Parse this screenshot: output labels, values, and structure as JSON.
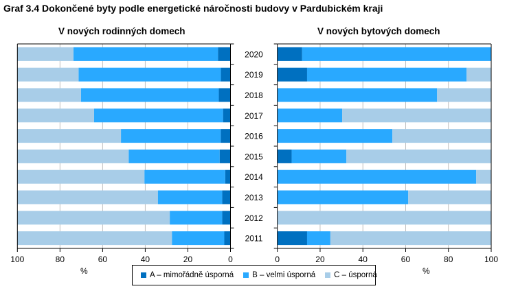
{
  "chart_data": [
    {
      "type": "bar",
      "orientation": "horizontal-stacked",
      "direction": "reversed",
      "title": "V nových rodinných domech",
      "xlabel": "%",
      "xlim": [
        0,
        100
      ],
      "xticks": [
        "100",
        "80",
        "60",
        "40",
        "20",
        "0"
      ],
      "categories": [
        "2020",
        "2019",
        "2018",
        "2017",
        "2016",
        "2015",
        "2014",
        "2013",
        "2012",
        "2011"
      ],
      "grid": true,
      "series": [
        {
          "name": "A – mimořádně úsporná",
          "values": [
            5.9,
            4.5,
            5.5,
            3.5,
            4.6,
            5.1,
            2.5,
            3.9,
            3.9,
            2.9
          ]
        },
        {
          "name": "B – velmi úsporná",
          "values": [
            67.8,
            66.8,
            64.7,
            60.5,
            46.8,
            42.7,
            37.9,
            30.2,
            24.6,
            24.6
          ]
        },
        {
          "name": "C – úsporná",
          "values": [
            26.3,
            28.7,
            29.8,
            36.0,
            48.6,
            52.2,
            59.6,
            65.9,
            71.5,
            72.5
          ]
        }
      ]
    },
    {
      "type": "bar",
      "orientation": "horizontal-stacked",
      "direction": "normal",
      "title": "V nových bytových domech",
      "xlabel": "%",
      "xlim": [
        0,
        100
      ],
      "xticks": [
        "0",
        "20",
        "40",
        "60",
        "80",
        "100"
      ],
      "categories": [
        "2020",
        "2019",
        "2018",
        "2017",
        "2016",
        "2015",
        "2014",
        "2013",
        "2012",
        "2011"
      ],
      "grid": true,
      "series": [
        {
          "name": "A – mimořádně úsporná",
          "values": [
            11.6,
            13.9,
            0,
            0,
            0,
            6.7,
            0,
            0,
            0,
            13.9
          ]
        },
        {
          "name": "B – velmi úsporná",
          "values": [
            88.4,
            74.6,
            74.7,
            30.3,
            53.8,
            25.6,
            93.0,
            61.2,
            0,
            10.9
          ]
        },
        {
          "name": "C – úsporná",
          "values": [
            0,
            11.5,
            25.3,
            69.7,
            46.2,
            67.7,
            7.0,
            38.8,
            100,
            75.2
          ]
        }
      ]
    }
  ],
  "page": {
    "title": "Graf 3.4 Dokončené byty podle energetické náročnosti budovy v Pardubickém kraji",
    "left_subtitle": "V nových rodinných domech",
    "right_subtitle": "V nových bytových domech",
    "left_xlabel": "%",
    "right_xlabel": "%"
  },
  "legend": {
    "position": "bottom-center",
    "items": [
      {
        "label": "A – mimořádně úsporná",
        "color": "#0070C0"
      },
      {
        "label": "B – velmi úsporná",
        "color": "#29A9FF"
      },
      {
        "label": "C – úsporná",
        "color": "#A8CDE8"
      }
    ]
  },
  "colors": {
    "A": "#0070C0",
    "B": "#29A9FF",
    "C": "#A8CDE8",
    "grid": "#BFBFBF"
  }
}
